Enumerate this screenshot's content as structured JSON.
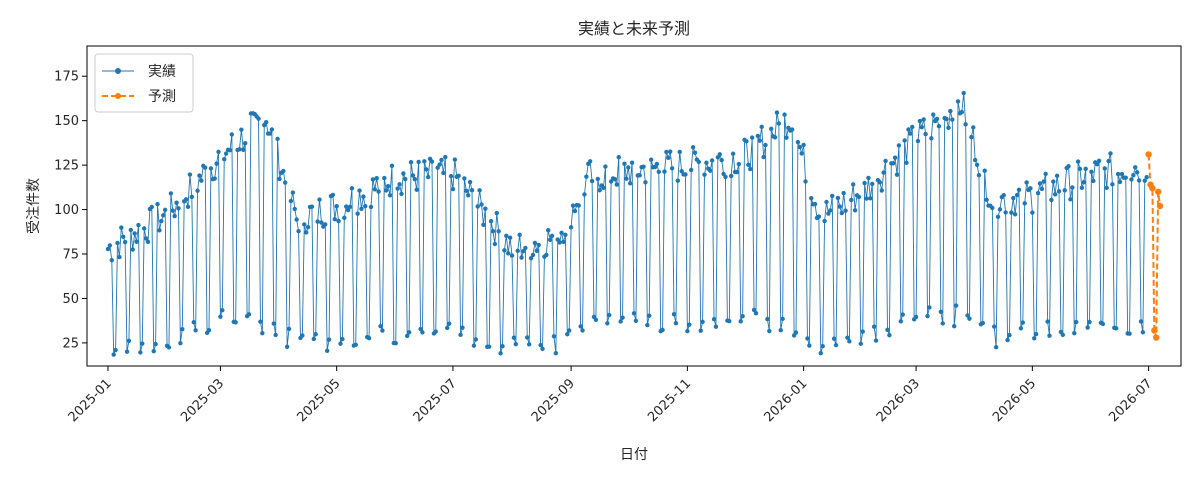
{
  "chart_data": {
    "type": "line",
    "title": "実績と未来予測",
    "xlabel": "日付",
    "ylabel": "受注件数",
    "xlim": [
      "2024-12-21",
      "2026-07-18"
    ],
    "ylim": [
      12,
      192
    ],
    "y_ticks": [
      25,
      50,
      75,
      100,
      125,
      150,
      175
    ],
    "x_ticks": [
      "2025-01",
      "2025-03",
      "2025-05",
      "2025-07",
      "2025-09",
      "2025-11",
      "2026-01",
      "2026-03",
      "2026-05",
      "2026-07"
    ],
    "x_tick_dates": [
      "2025-01-01",
      "2025-03-01",
      "2025-05-01",
      "2025-07-01",
      "2025-09-01",
      "2025-11-01",
      "2026-01-01",
      "2026-03-01",
      "2026-05-01",
      "2026-07-01"
    ],
    "grid": false,
    "legend_position": "upper-left",
    "series": [
      {
        "name": "実績",
        "color": "#1f77b4",
        "style": "solid-with-dots",
        "start": "2025-01-01",
        "end": "2026-06-30",
        "cycle_points": [
          {
            "date": "2025-01-01",
            "weekday": 78,
            "weekend": 21
          },
          {
            "date": "2025-02-01",
            "weekday": 97,
            "weekend": 26
          },
          {
            "date": "2025-03-01",
            "weekday": 130,
            "weekend": 38
          },
          {
            "date": "2025-03-25",
            "weekday": 152,
            "weekend": 36
          },
          {
            "date": "2025-04-10",
            "weekday": 95,
            "weekend": 24
          },
          {
            "date": "2025-05-01",
            "weekday": 102,
            "weekend": 27
          },
          {
            "date": "2025-06-01",
            "weekday": 118,
            "weekend": 30
          },
          {
            "date": "2025-07-01",
            "weekday": 120,
            "weekend": 32
          },
          {
            "date": "2025-08-01",
            "weekday": 78,
            "weekend": 23
          },
          {
            "date": "2025-08-25",
            "weekday": 85,
            "weekend": 24
          },
          {
            "date": "2025-09-10",
            "weekday": 118,
            "weekend": 34
          },
          {
            "date": "2025-10-01",
            "weekday": 122,
            "weekend": 36
          },
          {
            "date": "2025-11-01",
            "weekday": 125,
            "weekend": 37
          },
          {
            "date": "2025-12-01",
            "weekday": 130,
            "weekend": 38
          },
          {
            "date": "2025-12-25",
            "weekday": 152,
            "weekend": 36
          },
          {
            "date": "2026-01-10",
            "weekday": 96,
            "weekend": 24
          },
          {
            "date": "2026-02-01",
            "weekday": 110,
            "weekend": 28
          },
          {
            "date": "2026-03-01",
            "weekday": 140,
            "weekend": 42
          },
          {
            "date": "2026-03-25",
            "weekday": 160,
            "weekend": 40
          },
          {
            "date": "2026-04-10",
            "weekday": 105,
            "weekend": 28
          },
          {
            "date": "2026-05-01",
            "weekday": 108,
            "weekend": 32
          },
          {
            "date": "2026-06-01",
            "weekday": 120,
            "weekend": 33
          },
          {
            "date": "2026-06-30",
            "weekday": 125,
            "weekend": 35
          }
        ]
      },
      {
        "name": "予測",
        "color": "#ff7f0e",
        "style": "dashed-with-dots",
        "points": [
          {
            "date": "2026-07-01",
            "value": 131
          },
          {
            "date": "2026-07-02",
            "value": 114
          },
          {
            "date": "2026-07-03",
            "value": 112
          },
          {
            "date": "2026-07-04",
            "value": 32
          },
          {
            "date": "2026-07-05",
            "value": 28
          },
          {
            "date": "2026-07-06",
            "value": 110
          },
          {
            "date": "2026-07-07",
            "value": 102
          }
        ]
      }
    ]
  }
}
